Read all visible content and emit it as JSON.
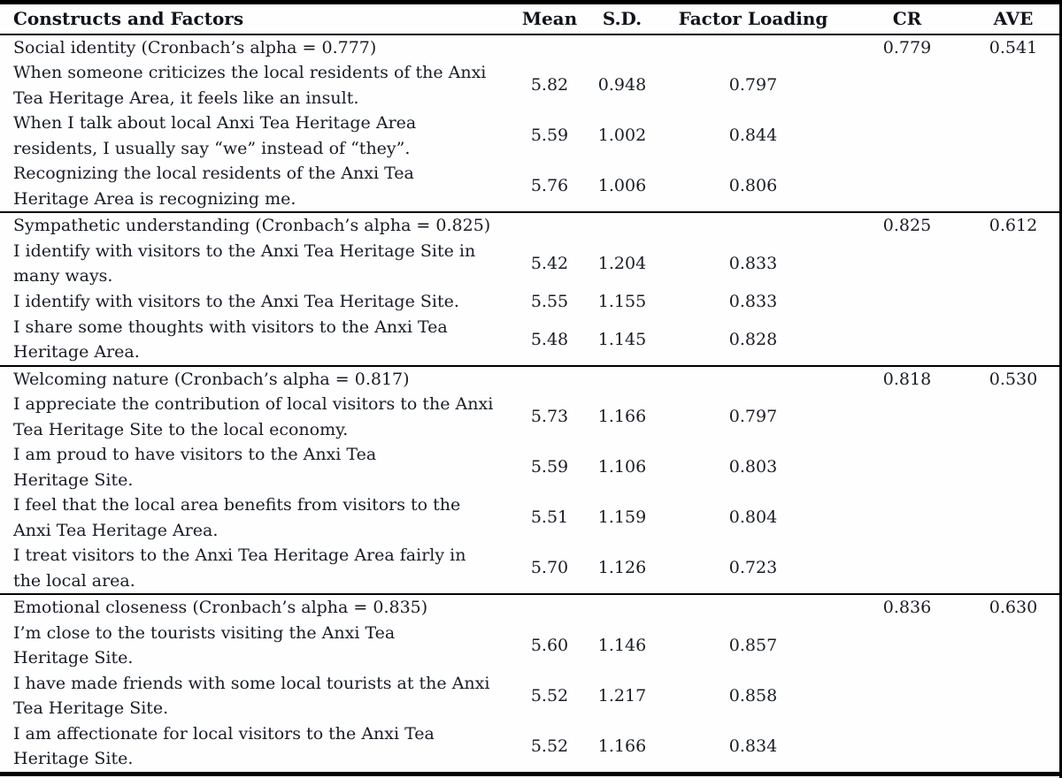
{
  "page": {
    "background": "#fefefe",
    "text_color": "#181c24",
    "rule_color": "#000000"
  },
  "table": {
    "columns": [
      {
        "key": "construct",
        "label": "Constructs and Factors"
      },
      {
        "key": "mean",
        "label": "Mean"
      },
      {
        "key": "sd",
        "label": "S.D."
      },
      {
        "key": "loading",
        "label": "Factor Loading"
      },
      {
        "key": "cr",
        "label": "CR"
      },
      {
        "key": "ave",
        "label": "AVE"
      }
    ],
    "sections": [
      {
        "construct": "Social identity (Cronbach’s alpha = 0.777)",
        "cr": "0.779",
        "ave": "0.541",
        "items": [
          {
            "text": "When someone criticizes the local residents of the Anxi\nTea Heritage Area, it feels like an insult.",
            "mean": "5.82",
            "sd": "0.948",
            "loading": "0.797"
          },
          {
            "text": "When I talk about local Anxi Tea Heritage Area\nresidents, I usually say “we” instead of “they”.",
            "mean": "5.59",
            "sd": "1.002",
            "loading": "0.844"
          },
          {
            "text": "Recognizing the local residents of the Anxi Tea\nHeritage Area is recognizing me.",
            "mean": "5.76",
            "sd": "1.006",
            "loading": "0.806"
          }
        ]
      },
      {
        "construct": "Sympathetic understanding (Cronbach’s alpha = 0.825)",
        "cr": "0.825",
        "ave": "0.612",
        "items": [
          {
            "text": "I identify with visitors to the Anxi Tea Heritage Site in\nmany ways.",
            "mean": "5.42",
            "sd": "1.204",
            "loading": "0.833"
          },
          {
            "text": "I identify with visitors to the Anxi Tea Heritage Site.",
            "mean": "5.55",
            "sd": "1.155",
            "loading": "0.833"
          },
          {
            "text": "I share some thoughts with visitors to the Anxi Tea\nHeritage Area.",
            "mean": "5.48",
            "sd": "1.145",
            "loading": "0.828"
          }
        ]
      },
      {
        "construct": "Welcoming nature (Cronbach’s alpha = 0.817)",
        "cr": "0.818",
        "ave": "0.530",
        "items": [
          {
            "text": "I appreciate the contribution of local visitors to the Anxi\nTea Heritage Site to the local economy.",
            "mean": "5.73",
            "sd": "1.166",
            "loading": "0.797"
          },
          {
            "text": "I am proud to have visitors to the Anxi Tea\nHeritage Site.",
            "mean": "5.59",
            "sd": "1.106",
            "loading": "0.803"
          },
          {
            "text": "I feel that the local area benefits from visitors to the\nAnxi Tea Heritage Area.",
            "mean": "5.51",
            "sd": "1.159",
            "loading": "0.804"
          },
          {
            "text": "I treat visitors to the Anxi Tea Heritage Area fairly in\nthe local area.",
            "mean": "5.70",
            "sd": "1.126",
            "loading": "0.723"
          }
        ]
      },
      {
        "construct": "Emotional closeness (Cronbach’s alpha = 0.835)",
        "cr": "0.836",
        "ave": "0.630",
        "items": [
          {
            "text": "I’m close to the tourists visiting the Anxi Tea\nHeritage Site.",
            "mean": "5.60",
            "sd": "1.146",
            "loading": "0.857"
          },
          {
            "text": "I have made friends with some local tourists at the Anxi\nTea Heritage Site.",
            "mean": "5.52",
            "sd": "1.217",
            "loading": "0.858"
          },
          {
            "text": "I am affectionate for local visitors to the Anxi Tea\nHeritage Site.",
            "mean": "5.52",
            "sd": "1.166",
            "loading": "0.834"
          }
        ]
      }
    ]
  }
}
